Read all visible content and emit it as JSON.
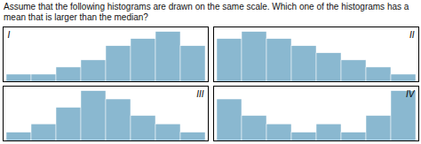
{
  "title": "Assume that the following histograms are drawn on the same scale. Which one of the histograms has a mean that is larger than the median?",
  "chart_data": [
    {
      "type": "bar",
      "title": "I",
      "categories": [
        null,
        null,
        null,
        null,
        null,
        null,
        null,
        null
      ],
      "values": [
        1,
        1,
        2,
        3,
        5,
        6,
        7,
        5
      ],
      "color": "#8ab8d0",
      "ylim": [
        0,
        7.7
      ],
      "grid": false,
      "tick_labels": false
    },
    {
      "type": "bar",
      "title": "II",
      "categories": [
        null,
        null,
        null,
        null,
        null,
        null,
        null,
        null
      ],
      "values": [
        6,
        7,
        6,
        5,
        4,
        3,
        2,
        1
      ],
      "color": "#8ab8d0",
      "ylim": [
        0,
        7.7
      ],
      "grid": false,
      "tick_labels": false
    },
    {
      "type": "bar",
      "title": "III",
      "categories": [
        null,
        null,
        null,
        null,
        null,
        null,
        null,
        null
      ],
      "values": [
        1,
        2,
        4,
        6,
        5,
        3,
        2,
        1
      ],
      "color": "#8ab8d0",
      "ylim": [
        0,
        6.6
      ],
      "grid": false,
      "tick_labels": false
    },
    {
      "type": "bar",
      "title": "IV",
      "categories": [
        null,
        null,
        null,
        null,
        null,
        null,
        null,
        null
      ],
      "values": [
        5,
        3,
        2,
        1,
        2,
        1,
        3,
        6
      ],
      "color": "#8ab8d0",
      "ylim": [
        0,
        6.6
      ],
      "grid": false,
      "tick_labels": false
    }
  ]
}
